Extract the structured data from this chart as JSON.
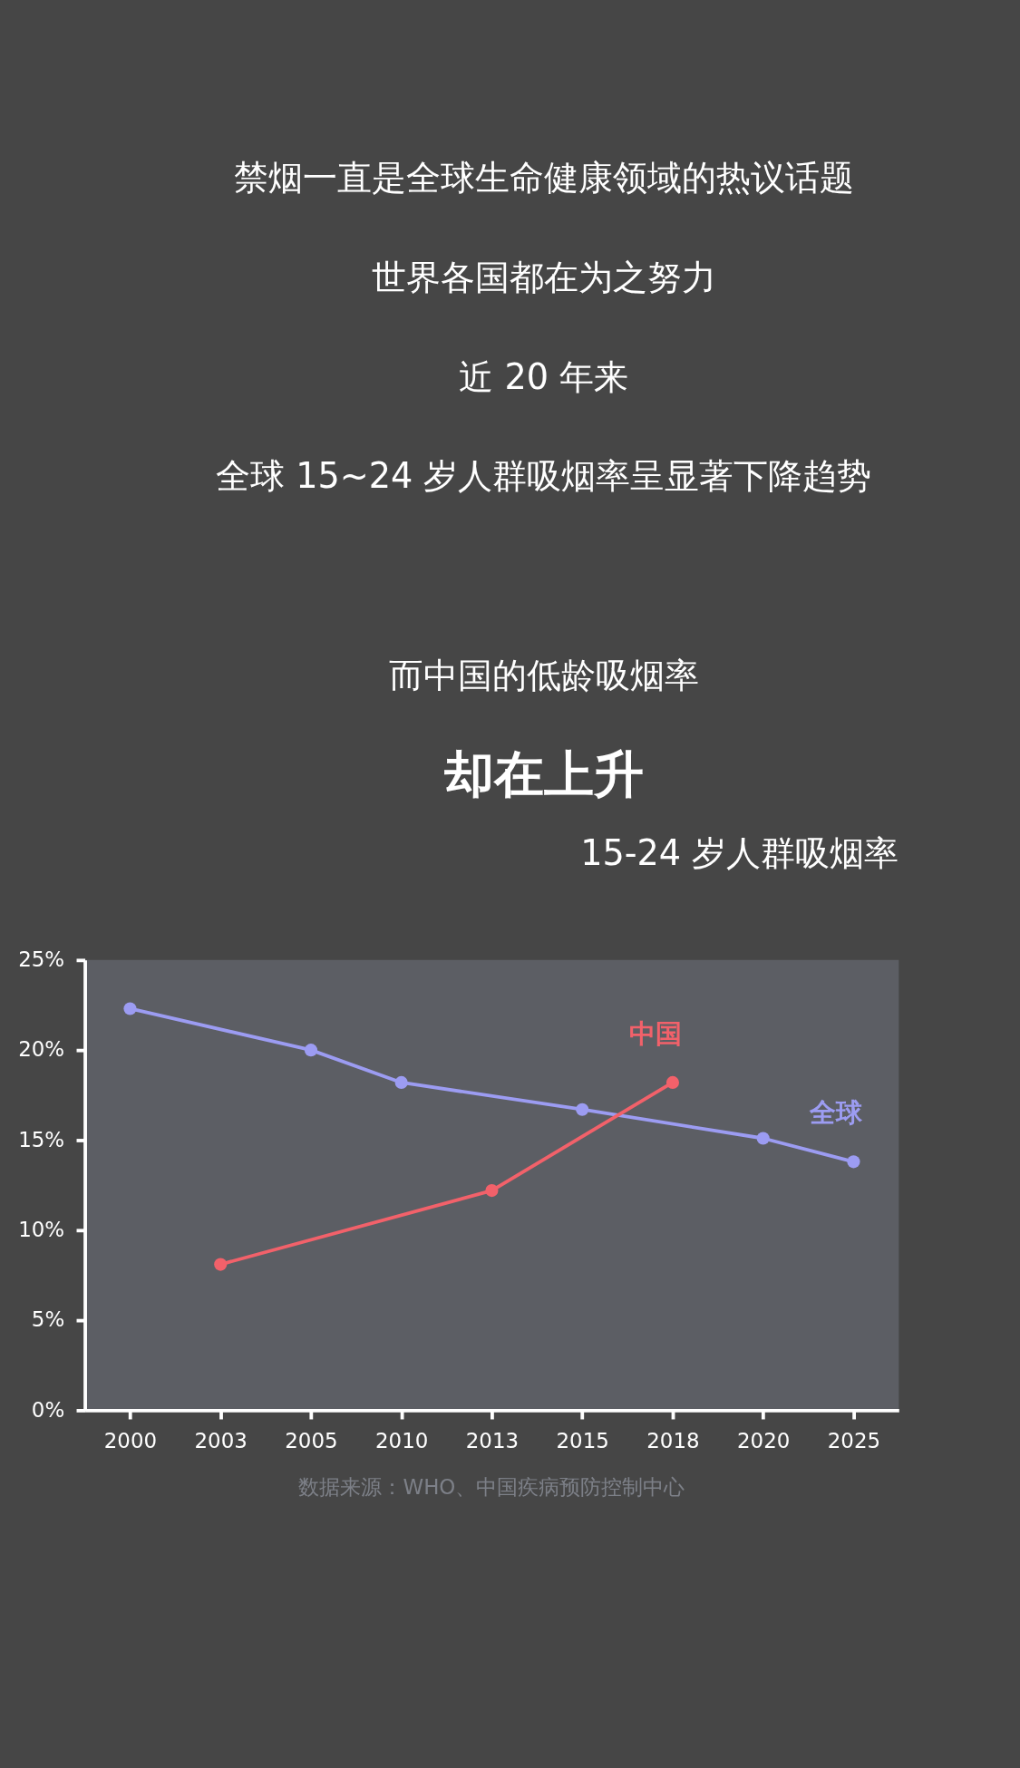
{
  "chart_data": {
    "type": "line",
    "title": "15-24 岁人群吸烟率",
    "categories": [
      "2000",
      "2003",
      "2005",
      "2010",
      "2013",
      "2015",
      "2018",
      "2020",
      "2025"
    ],
    "series": [
      {
        "name": "全球",
        "color": "#9c9cf2",
        "values": [
          22.3,
          null,
          20.0,
          18.2,
          null,
          16.7,
          null,
          15.1,
          13.8
        ]
      },
      {
        "name": "中国",
        "color": "#f2616a",
        "values": [
          null,
          8.1,
          null,
          null,
          12.2,
          null,
          18.2,
          null,
          null
        ]
      }
    ],
    "ylim": [
      0,
      25
    ],
    "yticks": [
      {
        "value": 0,
        "label": "0%"
      },
      {
        "value": 5,
        "label": "5%"
      },
      {
        "value": 10,
        "label": "10%"
      },
      {
        "value": 15,
        "label": "15%"
      },
      {
        "value": 20,
        "label": "20%"
      },
      {
        "value": 25,
        "label": "25%"
      }
    ],
    "grid": false,
    "legend": false,
    "marker": "circle",
    "line_style": "solid",
    "annotations": [
      "禁烟一直是全球生命健康领域的热议话题",
      "世界各国都在为之努力",
      "近 20 年来",
      "全球 15~24 岁人群吸烟率呈显著下降趋势",
      "而中国的低龄吸烟率",
      "却在上升",
      "数据来源：WHO、中国疾病预防控制中心"
    ]
  }
}
